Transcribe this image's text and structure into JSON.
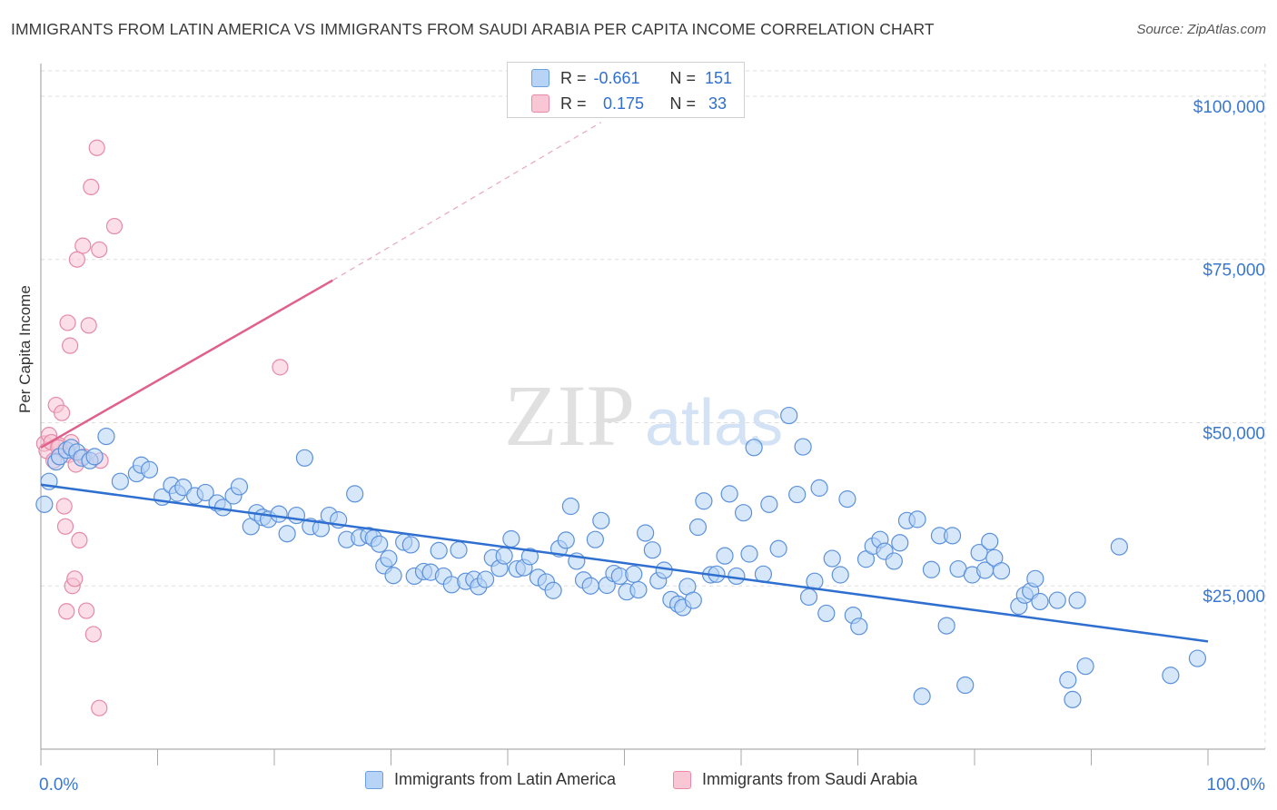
{
  "title": "IMMIGRANTS FROM LATIN AMERICA VS IMMIGRANTS FROM SAUDI ARABIA PER CAPITA INCOME CORRELATION CHART",
  "source": "Source: ZipAtlas.com",
  "watermark": {
    "zip": "ZIP",
    "atlas": "atlas"
  },
  "legend": {
    "r_label": "R =",
    "n_label": "N =",
    "rows": [
      {
        "r": "-0.661",
        "n": "151",
        "fill": "#b7d3f5",
        "stroke": "#6a9fe0"
      },
      {
        "r": "0.175",
        "n": "33",
        "fill": "#f9c6d6",
        "stroke": "#e88aa8"
      }
    ]
  },
  "colors": {
    "blue_fill": "#b7d3f5",
    "blue_stroke": "#5b91db",
    "blue_line": "#2f6fd0",
    "pink_fill": "#f7c3d3",
    "pink_stroke": "#e58aa7",
    "pink_line": "#e0608a",
    "axis_label": "#3a78d0",
    "grid": "#dddddd"
  },
  "chart_data": {
    "type": "scatter",
    "title": "IMMIGRANTS FROM LATIN AMERICA VS IMMIGRANTS FROM SAUDI ARABIA PER CAPITA INCOME CORRELATION CHART",
    "xlabel": "",
    "ylabel": "Per Capita Income",
    "xlim": [
      0,
      100
    ],
    "ylim": [
      0,
      105000
    ],
    "x_tick_labels": [
      "0.0%",
      "100.0%"
    ],
    "y_ticks": [
      25000,
      50000,
      75000,
      100000
    ],
    "y_tick_labels": [
      "$25,000",
      "$50,000",
      "$75,000",
      "$100,000"
    ],
    "grid": true,
    "legend_position": "top-center",
    "series": [
      {
        "name": "Immigrants from Latin America",
        "trend": {
          "x": [
            0,
            100
          ],
          "y": [
            40500,
            16500
          ]
        },
        "points": [
          [
            0.3,
            37500
          ],
          [
            0.7,
            41000
          ],
          [
            1.3,
            44000
          ],
          [
            1.6,
            44800
          ],
          [
            2.2,
            45800
          ],
          [
            2.6,
            46200
          ],
          [
            3.1,
            45500
          ],
          [
            3.5,
            44600
          ],
          [
            4.2,
            44200
          ],
          [
            4.6,
            44800
          ],
          [
            5.6,
            47900
          ],
          [
            6.8,
            41000
          ],
          [
            8.2,
            42200
          ],
          [
            8.6,
            43500
          ],
          [
            9.3,
            42800
          ],
          [
            10.4,
            38600
          ],
          [
            11.2,
            40400
          ],
          [
            11.7,
            39200
          ],
          [
            12.2,
            40100
          ],
          [
            13.2,
            38800
          ],
          [
            14.1,
            39300
          ],
          [
            15.1,
            37700
          ],
          [
            15.6,
            37000
          ],
          [
            16.5,
            38800
          ],
          [
            17.0,
            40200
          ],
          [
            18.0,
            34100
          ],
          [
            18.5,
            36200
          ],
          [
            19.0,
            35500
          ],
          [
            19.5,
            35200
          ],
          [
            20.4,
            36000
          ],
          [
            21.1,
            33000
          ],
          [
            21.9,
            35800
          ],
          [
            22.6,
            44600
          ],
          [
            23.1,
            34100
          ],
          [
            24.0,
            33800
          ],
          [
            24.7,
            35800
          ],
          [
            25.5,
            35100
          ],
          [
            26.2,
            32100
          ],
          [
            26.9,
            39100
          ],
          [
            27.3,
            32400
          ],
          [
            28.1,
            32700
          ],
          [
            28.5,
            32300
          ],
          [
            29.0,
            31400
          ],
          [
            29.4,
            28100
          ],
          [
            29.8,
            29200
          ],
          [
            30.2,
            26600
          ],
          [
            31.1,
            31700
          ],
          [
            31.7,
            31300
          ],
          [
            32.0,
            26500
          ],
          [
            32.8,
            27200
          ],
          [
            33.4,
            27100
          ],
          [
            34.1,
            30400
          ],
          [
            34.5,
            26500
          ],
          [
            35.2,
            25200
          ],
          [
            35.8,
            30500
          ],
          [
            36.4,
            25700
          ],
          [
            37.1,
            26000
          ],
          [
            37.5,
            24900
          ],
          [
            38.1,
            26000
          ],
          [
            38.7,
            29300
          ],
          [
            39.3,
            27700
          ],
          [
            39.7,
            29600
          ],
          [
            40.3,
            32200
          ],
          [
            40.8,
            27600
          ],
          [
            41.4,
            27800
          ],
          [
            41.9,
            29500
          ],
          [
            42.6,
            26300
          ],
          [
            43.3,
            25600
          ],
          [
            43.9,
            24300
          ],
          [
            44.4,
            30700
          ],
          [
            45.0,
            32000
          ],
          [
            45.4,
            37200
          ],
          [
            45.9,
            28800
          ],
          [
            46.5,
            25900
          ],
          [
            47.1,
            25000
          ],
          [
            47.5,
            32100
          ],
          [
            48.0,
            35000
          ],
          [
            48.5,
            25100
          ],
          [
            49.1,
            26900
          ],
          [
            49.6,
            26500
          ],
          [
            50.2,
            24100
          ],
          [
            50.8,
            26800
          ],
          [
            51.2,
            24400
          ],
          [
            51.8,
            33100
          ],
          [
            52.4,
            30500
          ],
          [
            52.9,
            25800
          ],
          [
            53.4,
            27400
          ],
          [
            54.0,
            22900
          ],
          [
            54.6,
            22200
          ],
          [
            55.0,
            21700
          ],
          [
            55.4,
            24900
          ],
          [
            55.9,
            22800
          ],
          [
            56.3,
            34000
          ],
          [
            56.8,
            38000
          ],
          [
            57.4,
            26700
          ],
          [
            57.9,
            26800
          ],
          [
            58.6,
            29600
          ],
          [
            59.0,
            39100
          ],
          [
            59.6,
            26500
          ],
          [
            60.2,
            36200
          ],
          [
            60.7,
            29900
          ],
          [
            61.1,
            46200
          ],
          [
            61.9,
            26800
          ],
          [
            62.4,
            37500
          ],
          [
            63.2,
            30700
          ],
          [
            64.1,
            51100
          ],
          [
            64.8,
            39000
          ],
          [
            65.3,
            46300
          ],
          [
            65.8,
            23300
          ],
          [
            66.3,
            25700
          ],
          [
            66.7,
            40000
          ],
          [
            67.3,
            20800
          ],
          [
            67.8,
            29200
          ],
          [
            68.5,
            26700
          ],
          [
            69.1,
            38300
          ],
          [
            69.6,
            20500
          ],
          [
            70.1,
            18800
          ],
          [
            70.7,
            29100
          ],
          [
            71.3,
            31100
          ],
          [
            71.9,
            32100
          ],
          [
            72.3,
            30300
          ],
          [
            73.1,
            28800
          ],
          [
            73.6,
            31600
          ],
          [
            74.2,
            35000
          ],
          [
            75.1,
            35200
          ],
          [
            75.5,
            8100
          ],
          [
            76.3,
            27500
          ],
          [
            77.0,
            32700
          ],
          [
            77.6,
            18900
          ],
          [
            78.1,
            32700
          ],
          [
            78.6,
            27600
          ],
          [
            79.2,
            9800
          ],
          [
            79.8,
            26700
          ],
          [
            80.4,
            30100
          ],
          [
            80.9,
            27400
          ],
          [
            81.3,
            31800
          ],
          [
            81.7,
            29300
          ],
          [
            82.3,
            27300
          ],
          [
            83.8,
            21900
          ],
          [
            84.3,
            23600
          ],
          [
            84.8,
            24200
          ],
          [
            85.2,
            26100
          ],
          [
            85.6,
            22600
          ],
          [
            87.1,
            22800
          ],
          [
            88.0,
            10600
          ],
          [
            88.4,
            7600
          ],
          [
            88.8,
            22800
          ],
          [
            89.5,
            12700
          ],
          [
            92.4,
            31000
          ],
          [
            96.8,
            11300
          ],
          [
            99.1,
            13900
          ]
        ]
      },
      {
        "name": "Immigrants from Saudi Arabia",
        "trend": {
          "x": [
            0,
            25,
            48
          ],
          "y": [
            46200,
            71800,
            96000
          ]
        },
        "points": [
          [
            0.3,
            46800
          ],
          [
            0.5,
            45700
          ],
          [
            0.7,
            48100
          ],
          [
            0.9,
            47000
          ],
          [
            1.1,
            44200
          ],
          [
            1.3,
            52700
          ],
          [
            1.6,
            46500
          ],
          [
            1.8,
            51500
          ],
          [
            2.0,
            37200
          ],
          [
            2.1,
            34100
          ],
          [
            2.3,
            65300
          ],
          [
            2.5,
            61800
          ],
          [
            2.7,
            25000
          ],
          [
            2.9,
            26100
          ],
          [
            3.1,
            75000
          ],
          [
            3.3,
            32000
          ],
          [
            3.6,
            77100
          ],
          [
            3.9,
            21200
          ],
          [
            4.1,
            64900
          ],
          [
            4.3,
            86100
          ],
          [
            4.5,
            17600
          ],
          [
            4.8,
            92100
          ],
          [
            2.2,
            21100
          ],
          [
            6.3,
            80100
          ],
          [
            5.1,
            44200
          ],
          [
            5.0,
            76500
          ],
          [
            5.0,
            6300
          ],
          [
            20.5,
            58500
          ],
          [
            2.4,
            45100
          ],
          [
            2.6,
            47000
          ],
          [
            3.0,
            43600
          ],
          [
            1.5,
            46200
          ],
          [
            3.7,
            44800
          ]
        ]
      }
    ]
  }
}
